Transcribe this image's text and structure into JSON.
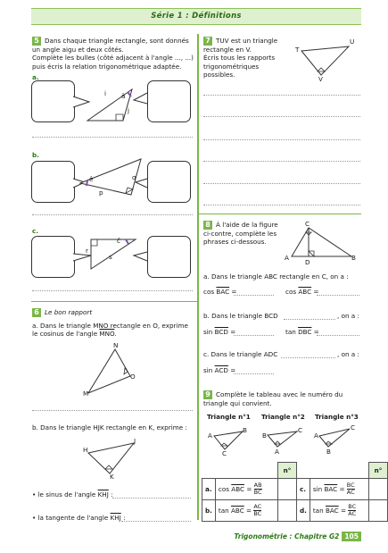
{
  "header": {
    "title": "Série 1 : Définitions"
  },
  "ex5": {
    "num": "5",
    "line1": "Dans chaque triangle rectangle, sont donnés",
    "line2": "un angle aigu et deux côtés.",
    "line3": "Complète les bulles (côté adjacent à l'angle ..., ...)",
    "line4": "puis écris la relation trigonométrique adaptée.",
    "a": "a.",
    "b": "b.",
    "c": "c.",
    "a_i": "i",
    "a_a": "â",
    "a_j": "j",
    "b_e": "ê",
    "b_q": "q",
    "b_p": "p",
    "c_c": "ĉ",
    "c_r": "r",
    "c_s": "s"
  },
  "ex6": {
    "num": "6",
    "title": "Le bon rapport",
    "a_line1": "a. Dans le triangle MNO rectangle en O, exprime",
    "a_line2_pre": "le cosinus de l'angle ",
    "a_line2_ang": "MNO",
    "a_line2_post": ".",
    "N": "N",
    "O": "O",
    "M": "M",
    "b_line": "b. Dans le triangle HJK rectangle en K, exprime :",
    "H": "H",
    "J": "J",
    "K": "K",
    "bul1_pre": "• le sinus de l'angle ",
    "bul1_ang": "KHJ",
    "bul1_post": " :",
    "bul2_pre": "• la tangente de l'angle ",
    "bul2_ang": "KHJ",
    "bul2_post": " :"
  },
  "ex7": {
    "num": "7",
    "line1": "TUV est un triangle",
    "line2": "rectangle en V.",
    "line3": "Écris tous les rapports",
    "line4": "trigonométriques",
    "line5": "possibles.",
    "T": "T",
    "U": "U",
    "V": "V"
  },
  "ex8": {
    "num": "8",
    "line1": "À l'aide de la figure",
    "line2": "ci-contre, complète les",
    "line3": "phrases ci-dessous.",
    "C": "C",
    "A": "A",
    "B": "B",
    "D": "D",
    "a_line": "a. Dans le triangle ABC rectangle en C, on a :",
    "a_c1_pre": "cos ",
    "a_c1_ang": "BAC",
    "a_c1_post": " = ",
    "a_c2_pre": "cos ",
    "a_c2_ang": "ABC",
    "a_c2_post": " = ",
    "b_line": "b. Dans le triangle BCD",
    "b_tail": ", on a :",
    "b_s_pre": "sin ",
    "b_s_ang": "BCD",
    "b_s_post": " = ",
    "b_t_pre": "tan ",
    "b_t_ang": "DBC",
    "b_t_post": " = ",
    "c_line": "c. Dans le triangle ADC",
    "c_tail": ", on a :",
    "c_s_pre": "sin ",
    "c_s_ang": "ACD",
    "c_s_post": " = "
  },
  "ex9": {
    "num": "9",
    "line1": "Complète le tableau avec le numéro du",
    "line2": "triangle qui convient.",
    "tri1": "Triangle n°1",
    "tri2": "Triangle n°2",
    "tri3": "Triangle n°3",
    "A": "A",
    "B": "B",
    "C": "C",
    "col_head": "n°",
    "ra_label": "a.",
    "ra_pre": "cos ",
    "ra_ang": "ABC",
    "ra_num": "AB",
    "ra_den": "BC",
    "rb_label": "b.",
    "rb_pre": "tan ",
    "rb_ang": "ABC",
    "rb_num": "AC",
    "rb_den": "BC",
    "rc_label": "c.",
    "rc_pre": "sin ",
    "rc_ang": "BAC",
    "rc_num": "BC",
    "rc_den": "AC",
    "rd_label": "d.",
    "rd_pre": "tan ",
    "rd_ang": "BAC",
    "rd_num": "BC",
    "rd_den": "AC"
  },
  "footer": {
    "text": "Trigonométrie : Chapitre G2",
    "page": "105"
  },
  "colors": {
    "accent": "#7ab648",
    "light": "#dff0d0",
    "dark": "#2a7a12"
  }
}
